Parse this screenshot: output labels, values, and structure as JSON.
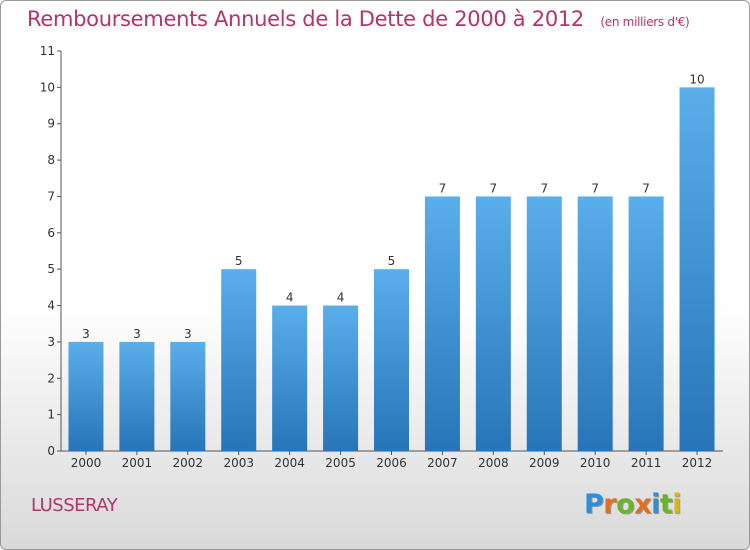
{
  "chart_data": {
    "type": "bar",
    "title": "Remboursements Annuels de la Dette de 2000 à 2012",
    "unit_note": "(en milliers d'€)",
    "categories": [
      "2000",
      "2001",
      "2002",
      "2003",
      "2004",
      "2005",
      "2006",
      "2007",
      "2008",
      "2009",
      "2010",
      "2011",
      "2012"
    ],
    "values": [
      3,
      3,
      3,
      5,
      4,
      4,
      5,
      7,
      7,
      7,
      7,
      7,
      10
    ],
    "ylim": [
      0,
      11
    ],
    "yticks": [
      0,
      1,
      2,
      3,
      4,
      5,
      6,
      7,
      8,
      9,
      10,
      11
    ],
    "grid": false,
    "bar_color": "#3a8fd6"
  },
  "footer": {
    "town": "LUSSERAY",
    "logo_letters": [
      {
        "ch": "P",
        "color": "#2e8fd6"
      },
      {
        "ch": "r",
        "color": "#e0701e"
      },
      {
        "ch": "o",
        "color": "#6ab42d"
      },
      {
        "ch": "x",
        "color": "#e0701e"
      },
      {
        "ch": "i",
        "color": "#2e8fd6"
      },
      {
        "ch": "t",
        "color": "#6ab42d"
      },
      {
        "ch": "i",
        "color": "#d9b21c"
      }
    ]
  }
}
